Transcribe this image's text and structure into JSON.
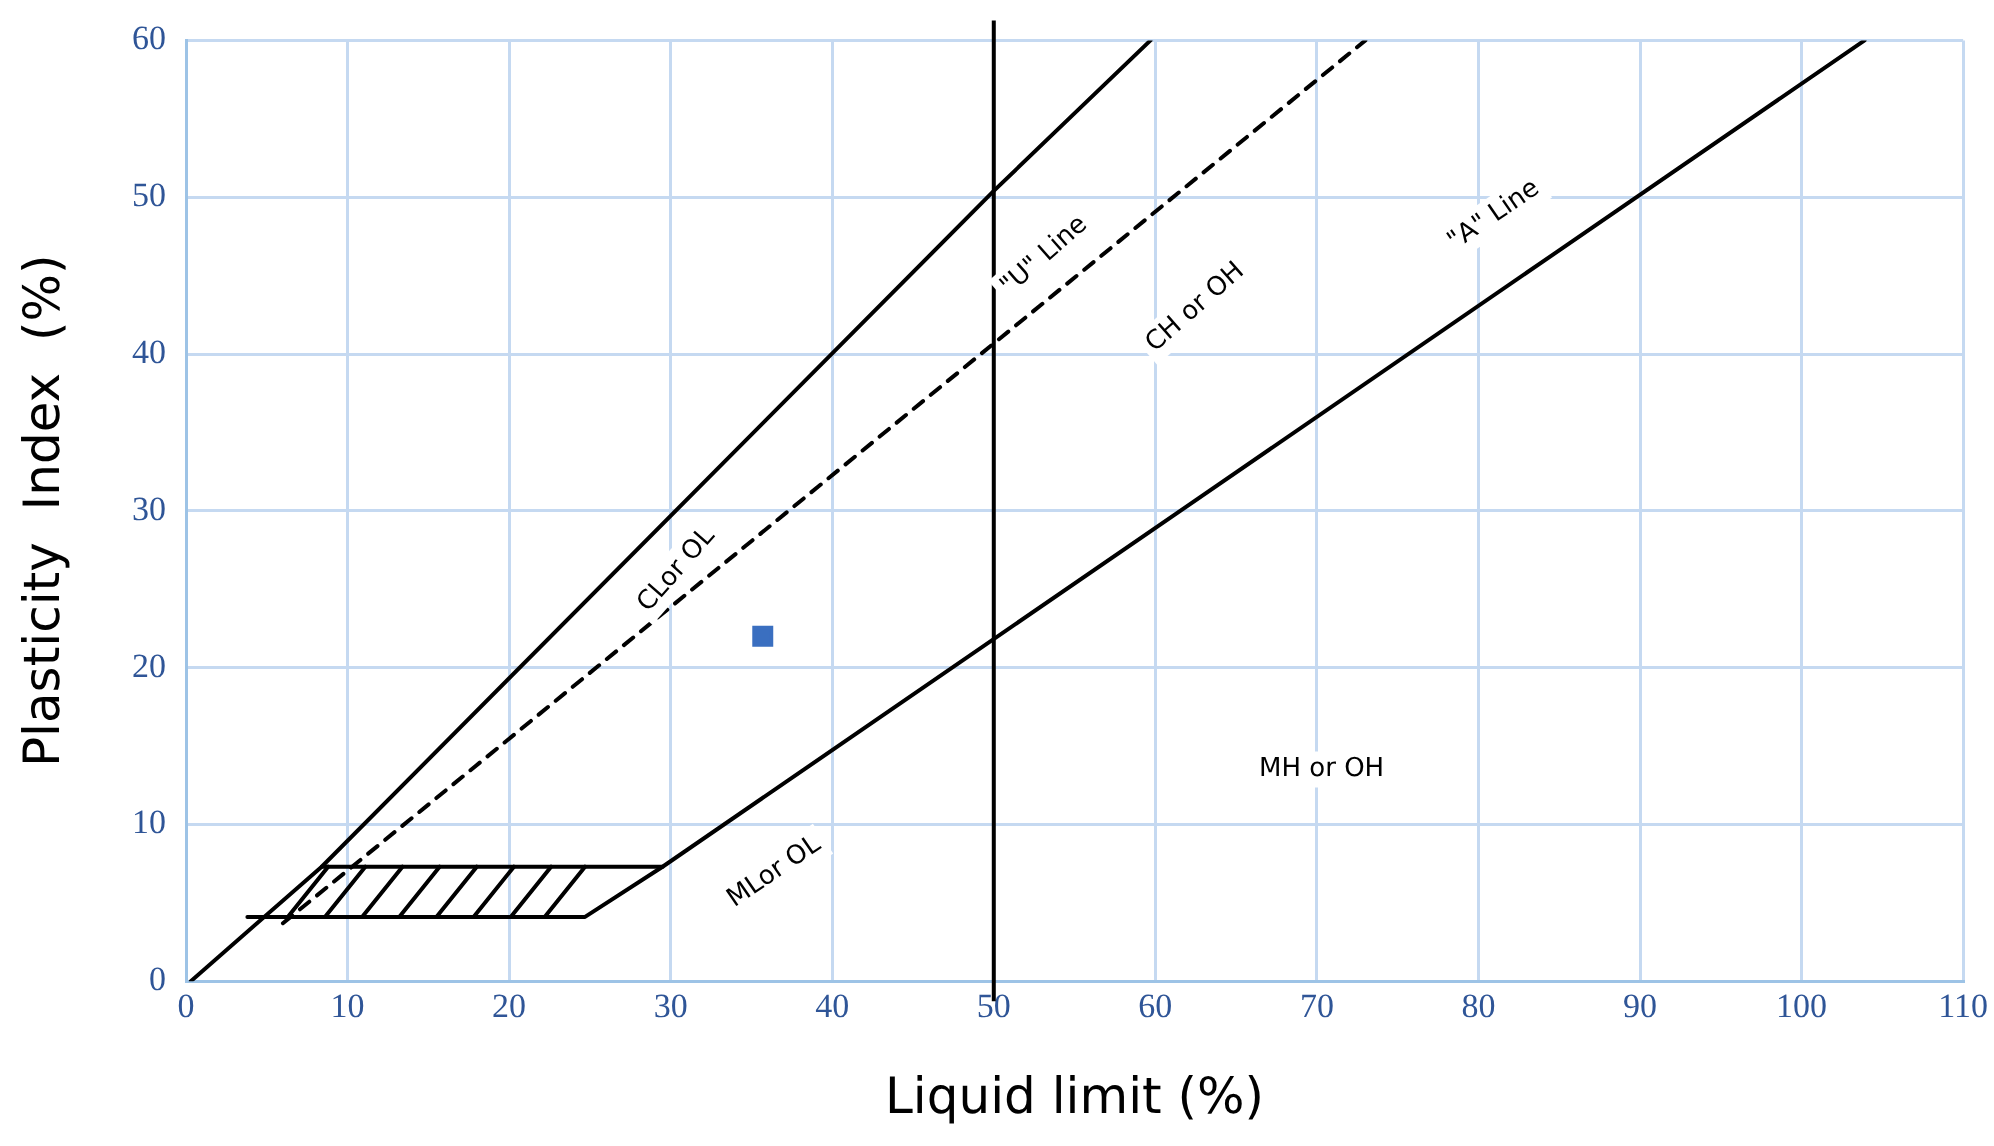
{
  "chart_data": {
    "type": "line",
    "xlabel": "Liquid limit (%)",
    "ylabel": "Plasticity  Index  (%)",
    "xlim": [
      0,
      110
    ],
    "xticks": [
      0,
      10,
      20,
      30,
      40,
      50,
      60,
      70,
      80,
      90,
      100,
      110
    ],
    "ylim": [
      0,
      60
    ],
    "yticks": [
      0,
      10,
      20,
      30,
      40,
      50,
      60
    ],
    "grid": true,
    "legend": false,
    "marker": "none",
    "line_style": "solid",
    "series": [
      {
        "color": "#000000",
        "x": [
          0.3,
          8.4,
          50,
          59.7
        ],
        "values": [
          0,
          7.3,
          50.4,
          60
        ]
      },
      {
        "color": "#000000",
        "line_style": "dashed",
        "x": [
          6,
          73
        ],
        "values": [
          3.7,
          60
        ]
      },
      {
        "color": "#000000",
        "x": [
          3.8,
          24.7,
          29.5,
          103.9
        ],
        "values": [
          4.1,
          4.1,
          7.3,
          60
        ]
      },
      {
        "color": "#000000",
        "x": [
          8.4,
          29.5
        ],
        "values": [
          7.3,
          7.3
        ]
      },
      {
        "color": "#000000",
        "x": [
          6.3,
          8.8,
          null,
          8.6,
          11.1,
          null,
          10.9,
          13.4,
          null,
          13.2,
          15.7,
          null,
          15.5,
          18,
          null,
          17.8,
          20.3,
          null,
          20.1,
          22.6,
          null,
          22.2,
          24.7
        ],
        "values": [
          4.1,
          7.3,
          null,
          4.1,
          7.3,
          null,
          4.1,
          7.3,
          null,
          4.1,
          7.3,
          null,
          4.1,
          7.3,
          null,
          4.1,
          7.3,
          null,
          4.1,
          7.3,
          null,
          4.1,
          7.3
        ]
      },
      {
        "type": "scatter",
        "color": "#3a6fc0",
        "marker": "square",
        "x": [
          35.7
        ],
        "values": [
          22
        ]
      }
    ],
    "ref_lines": [
      {
        "axis": "x",
        "value": 50,
        "color": "#000000"
      }
    ],
    "annotations": [
      "\"U\" Line",
      "CH or OH",
      "\"A\" Line",
      "CLor OL",
      "MLor OL",
      "MH or OH"
    ]
  }
}
